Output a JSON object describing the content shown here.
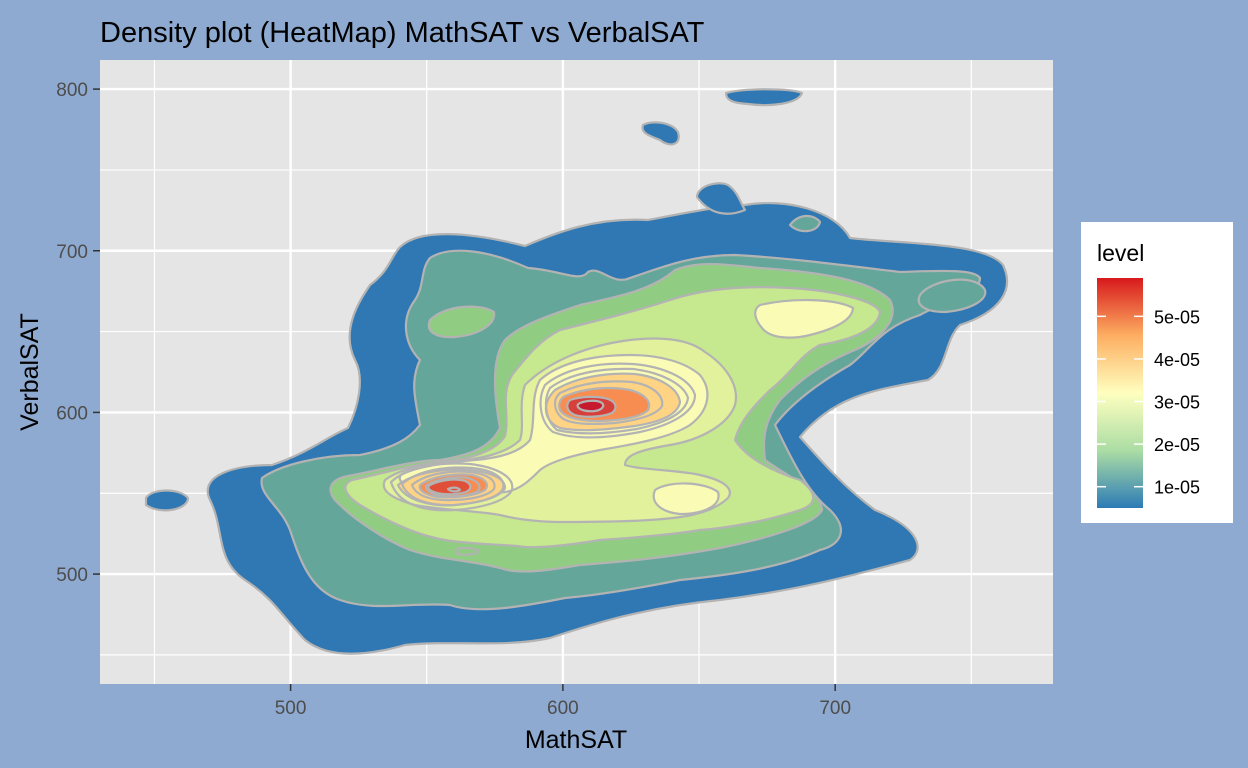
{
  "chart_data": {
    "type": "heatmap",
    "subtype": "filled-density-contour",
    "title": "Density plot (HeatMap) MathSAT vs VerbalSAT",
    "xlabel": "MathSAT",
    "ylabel": "VerbalSAT",
    "xlim": [
      430,
      780
    ],
    "ylim": [
      432,
      818
    ],
    "x_ticks": [
      500,
      600,
      700
    ],
    "y_ticks": [
      500,
      600,
      700,
      800
    ],
    "grid": true,
    "legend": {
      "title": "level",
      "placement": "right",
      "ticks": [
        {
          "label": "1e-05",
          "value": 1e-05
        },
        {
          "label": "2e-05",
          "value": 2e-05
        },
        {
          "label": "3e-05",
          "value": 3e-05
        },
        {
          "label": "4e-05",
          "value": 4e-05
        },
        {
          "label": "5e-05",
          "value": 5e-05
        }
      ],
      "range": [
        5e-06,
        5.9e-05
      ]
    },
    "contour_levels": [
      5e-06,
      1e-05,
      1.5e-05,
      2e-05,
      2.5e-05,
      3e-05,
      3.5e-05,
      4e-05,
      4.5e-05,
      5e-05,
      5.5e-05
    ],
    "density_peaks": [
      {
        "MathSAT": 607,
        "VerbalSAT": 605,
        "level": 5.9e-05
      },
      {
        "MathSAT": 558,
        "VerbalSAT": 553,
        "level": 5.5e-05
      }
    ],
    "palette": [
      "#2c7bb6",
      "#abdda4",
      "#ffffbf",
      "#fdae61",
      "#d7191c"
    ],
    "contour_line_color": "#b3b3b3",
    "panel_color": "#e5e5e5",
    "background_color": "#8eaad1"
  }
}
